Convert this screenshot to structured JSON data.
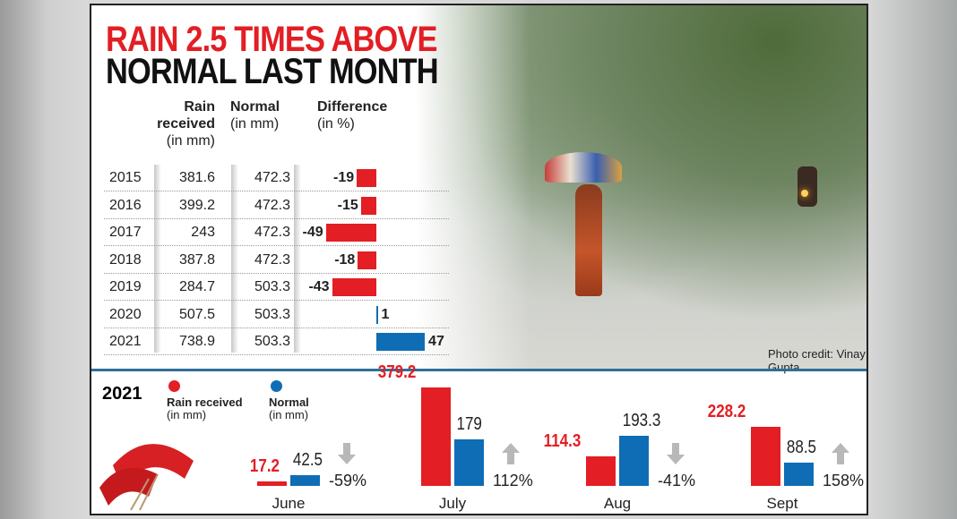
{
  "title_line1": "RAIN 2.5 TIMES ABOVE",
  "title_line2": "NORMAL LAST MONTH",
  "photo_credit": "Photo credit: Vinay Gupta",
  "table": {
    "headers": {
      "rain": [
        "Rain",
        "received",
        "(in mm)"
      ],
      "normal": [
        "Normal",
        "(in mm)"
      ],
      "diff": [
        "Difference",
        "(in %)"
      ]
    },
    "rows": [
      {
        "year": "2015",
        "rain": "381.6",
        "normal": "472.3",
        "diff": "-19"
      },
      {
        "year": "2016",
        "rain": "399.2",
        "normal": "472.3",
        "diff": "-15"
      },
      {
        "year": "2017",
        "rain": "243",
        "normal": "472.3",
        "diff": "-49"
      },
      {
        "year": "2018",
        "rain": "387.8",
        "normal": "472.3",
        "diff": "-18"
      },
      {
        "year": "2019",
        "rain": "284.7",
        "normal": "503.3",
        "diff": "-43"
      },
      {
        "year": "2020",
        "rain": "507.5",
        "normal": "503.3",
        "diff": "1"
      },
      {
        "year": "2021",
        "rain": "738.9",
        "normal": "503.3",
        "diff": "47"
      }
    ]
  },
  "chart_data": [
    {
      "type": "bar",
      "title": "",
      "categories": [
        "2015",
        "2016",
        "2017",
        "2018",
        "2019",
        "2020",
        "2021"
      ],
      "values": [
        -19,
        -15,
        -49,
        -18,
        -43,
        1,
        47
      ],
      "ylabel": "Difference (in %)",
      "colors": {
        "negative": "#e31e24",
        "positive": "#0f6db5"
      }
    },
    {
      "type": "bar",
      "title": "2021",
      "categories": [
        "June",
        "July",
        "Aug",
        "Sept"
      ],
      "series": [
        {
          "name": "Rain received (in mm)",
          "values": [
            17.2,
            379.2,
            114.3,
            228.2
          ],
          "color": "#e31e24"
        },
        {
          "name": "Normal (in mm)",
          "values": [
            42.5,
            179,
            193.3,
            88.5
          ],
          "color": "#0f6db5"
        }
      ],
      "changes": [
        {
          "value": "-59%",
          "direction": "down"
        },
        {
          "value": "112%",
          "direction": "up"
        },
        {
          "value": "-41%",
          "direction": "down"
        },
        {
          "value": "158%",
          "direction": "up"
        }
      ]
    }
  ],
  "legend": {
    "year": "2021",
    "rain": [
      "Rain received",
      "(in mm)"
    ],
    "normal": [
      "Normal",
      "(in mm)"
    ]
  }
}
